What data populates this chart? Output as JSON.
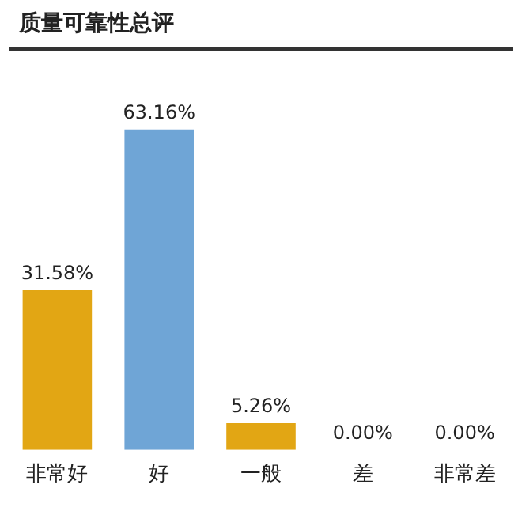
{
  "chart_data": {
    "type": "bar",
    "title": "质量可靠性总评",
    "categories": [
      "非常好",
      "好",
      "一般",
      "差",
      "非常差"
    ],
    "values": [
      31.58,
      63.16,
      5.26,
      0,
      0
    ],
    "colors": [
      "#e2a614",
      "#6fa5d6",
      "#e2a614",
      "#e2a614",
      "#e2a614"
    ],
    "value_labels": [
      "31.58%",
      "63.16%",
      "5.26%",
      "0.00%",
      "0.00%"
    ],
    "tick_labels": "x",
    "grid": false,
    "legend": false
  }
}
